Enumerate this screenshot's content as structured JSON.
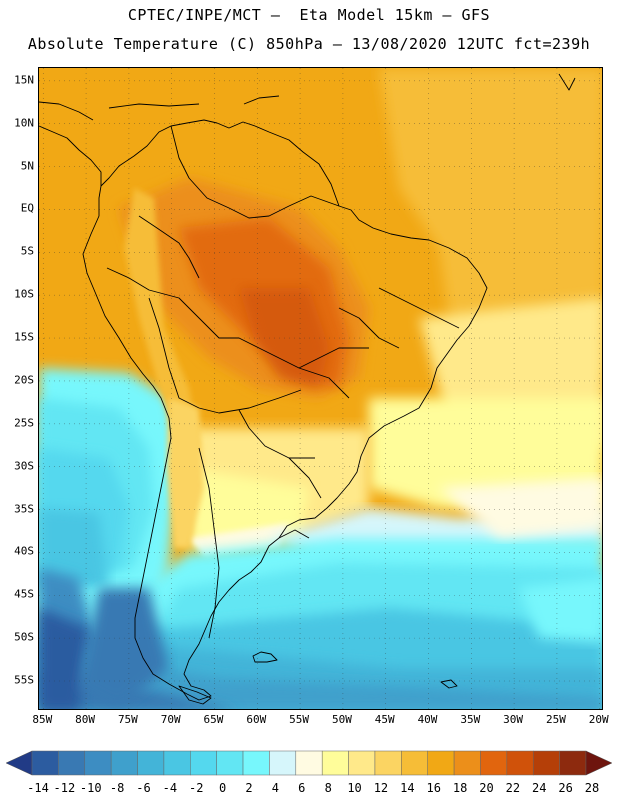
{
  "title_line1": "CPTEC/INPE/MCT –  Eta Model 15km – GFS",
  "title_line2": "Absolute Temperature (C) 850hPa – 13/08/2020 12UTC fct=239h",
  "lat_labels": [
    "15N",
    "10N",
    "5N",
    "EQ",
    "5S",
    "10S",
    "15S",
    "20S",
    "25S",
    "30S",
    "35S",
    "40S",
    "45S",
    "50S",
    "55S"
  ],
  "lat_values": [
    15,
    10,
    5,
    0,
    -5,
    -10,
    -15,
    -20,
    -25,
    -30,
    -35,
    -40,
    -45,
    -50,
    -55
  ],
  "lon_labels": [
    "85W",
    "80W",
    "75W",
    "70W",
    "65W",
    "60W",
    "55W",
    "50W",
    "45W",
    "40W",
    "35W",
    "30W",
    "25W",
    "20W"
  ],
  "lon_values": [
    -85,
    -80,
    -75,
    -70,
    -65,
    -60,
    -55,
    -50,
    -45,
    -40,
    -35,
    -30,
    -25,
    -20
  ],
  "map_extent": {
    "lon_min": -85.5,
    "lon_max": -19.5,
    "lat_min": -58.5,
    "lat_max": 16.5
  },
  "colorbar": {
    "labels": [
      "-14",
      "-12",
      "-10",
      "-8",
      "-6",
      "-4",
      "-2",
      "0",
      "2",
      "4",
      "6",
      "8",
      "10",
      "12",
      "14",
      "16",
      "18",
      "20",
      "22",
      "24",
      "26",
      "28"
    ],
    "colors": [
      "#213b86",
      "#2c5ca0",
      "#3979b3",
      "#3d8dc2",
      "#3fa0cc",
      "#43b4d8",
      "#4ac6e3",
      "#54d8ee",
      "#62e6f3",
      "#77f7fc",
      "#d6f6fb",
      "#fffbe2",
      "#fffd9a",
      "#ffe98a",
      "#fbd462",
      "#f6bd37",
      "#f1a815",
      "#ec8f1a",
      "#e1650e",
      "#d0520a",
      "#b53f08",
      "#8d2a0e",
      "#6e150e"
    ]
  },
  "legend_title": "Temperature (C) 850hPa"
}
